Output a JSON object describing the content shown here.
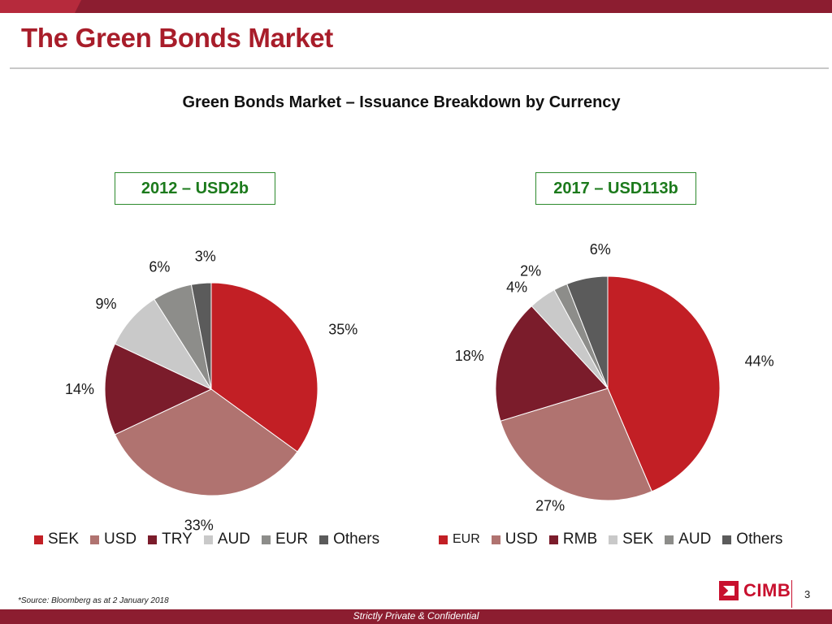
{
  "page": {
    "title": "The Green Bonds Market",
    "subtitle": "Green Bonds Market – Issuance Breakdown by Currency",
    "source_note": "*Source: Bloomberg as at 2 January 2018",
    "footer": "Strictly Private & Confidential",
    "page_number": "3",
    "logo_text": "CIMB"
  },
  "colors": {
    "header_bar": "#8c1d30",
    "title": "#a81d2a",
    "box_border": "#2d8a2d",
    "box_text": "#1c7a1c"
  },
  "chart_data": [
    {
      "type": "pie",
      "title": "2012 – USD2b",
      "categories": [
        "SEK",
        "USD",
        "TRY",
        "AUD",
        "EUR",
        "Others"
      ],
      "values": [
        35,
        33,
        14,
        9,
        6,
        3
      ],
      "labels": [
        "35%",
        "33%",
        "14%",
        "9%",
        "6%",
        "3%"
      ],
      "colors": [
        "#c21f25",
        "#b07370",
        "#7b1c2b",
        "#c9c9c9",
        "#8d8d8a",
        "#5b5b5b"
      ],
      "legend": "bottom"
    },
    {
      "type": "pie",
      "title": "2017 – USD113b",
      "categories": [
        "EUR",
        "USD",
        "RMB",
        "SEK",
        "AUD",
        "Others"
      ],
      "values": [
        44,
        27,
        18,
        4,
        2,
        6
      ],
      "labels": [
        "44%",
        "27%",
        "18%",
        "4%",
        "2%",
        "6%"
      ],
      "colors": [
        "#c21f25",
        "#b07370",
        "#7b1c2b",
        "#c9c9c9",
        "#8d8d8a",
        "#5b5b5b"
      ],
      "legend": "bottom"
    }
  ]
}
